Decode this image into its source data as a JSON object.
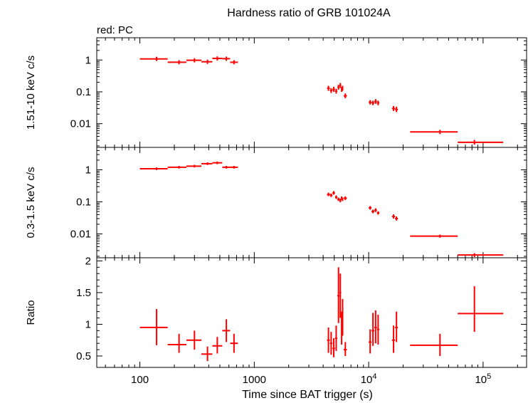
{
  "title": "Hardness ratio of GRB 101024A",
  "legend": "red: PC",
  "chart_data": [
    {
      "type": "scatter",
      "panel": "hard",
      "ylabel": "1.51-10 keV c/s",
      "xscale": "log",
      "yscale": "log",
      "xlim": [
        42,
        240000
      ],
      "ylim": [
        0.0018,
        5
      ],
      "yticks": [
        1,
        0.1,
        0.01
      ],
      "ytick_labels": [
        "1",
        "0.1",
        "0.01"
      ],
      "series": [
        {
          "color": "#ff0000",
          "points": [
            {
              "x": 140,
              "xlo": 100,
              "xhi": 175,
              "y": 1.08,
              "ylo": 0.93,
              "yhi": 1.26
            },
            {
              "x": 220,
              "xlo": 175,
              "xhi": 255,
              "y": 0.85,
              "ylo": 0.73,
              "yhi": 0.99
            },
            {
              "x": 300,
              "xlo": 255,
              "xhi": 345,
              "y": 0.98,
              "ylo": 0.84,
              "yhi": 1.14
            },
            {
              "x": 390,
              "xlo": 345,
              "xhi": 430,
              "y": 0.88,
              "ylo": 0.75,
              "yhi": 1.03
            },
            {
              "x": 475,
              "xlo": 430,
              "xhi": 525,
              "y": 1.12,
              "ylo": 0.96,
              "yhi": 1.3
            },
            {
              "x": 570,
              "xlo": 525,
              "xhi": 615,
              "y": 1.1,
              "ylo": 0.94,
              "yhi": 1.28
            },
            {
              "x": 665,
              "xlo": 615,
              "xhi": 720,
              "y": 0.85,
              "ylo": 0.73,
              "yhi": 0.99
            },
            {
              "x": 4450,
              "xlo": 4320,
              "xhi": 4580,
              "y": 0.13,
              "ylo": 0.108,
              "yhi": 0.155
            },
            {
              "x": 4700,
              "xlo": 4580,
              "xhi": 4820,
              "y": 0.11,
              "ylo": 0.092,
              "yhi": 0.131
            },
            {
              "x": 4950,
              "xlo": 4820,
              "xhi": 5080,
              "y": 0.12,
              "ylo": 0.1,
              "yhi": 0.143
            },
            {
              "x": 5200,
              "xlo": 5080,
              "xhi": 5320,
              "y": 0.105,
              "ylo": 0.088,
              "yhi": 0.125
            },
            {
              "x": 5450,
              "xlo": 5320,
              "xhi": 5560,
              "y": 0.14,
              "ylo": 0.117,
              "yhi": 0.167
            },
            {
              "x": 5650,
              "xlo": 5560,
              "xhi": 5750,
              "y": 0.16,
              "ylo": 0.134,
              "yhi": 0.19
            },
            {
              "x": 5800,
              "xlo": 5750,
              "xhi": 5860,
              "y": 0.12,
              "ylo": 0.1,
              "yhi": 0.143
            },
            {
              "x": 5920,
              "xlo": 5860,
              "xhi": 5980,
              "y": 0.13,
              "ylo": 0.108,
              "yhi": 0.155
            },
            {
              "x": 6250,
              "xlo": 6050,
              "xhi": 6450,
              "y": 0.075,
              "ylo": 0.063,
              "yhi": 0.089
            },
            {
              "x": 10300,
              "xlo": 10000,
              "xhi": 10600,
              "y": 0.047,
              "ylo": 0.04,
              "yhi": 0.055
            },
            {
              "x": 10900,
              "xlo": 10600,
              "xhi": 11200,
              "y": 0.045,
              "ylo": 0.038,
              "yhi": 0.053
            },
            {
              "x": 11500,
              "xlo": 11200,
              "xhi": 11800,
              "y": 0.05,
              "ylo": 0.042,
              "yhi": 0.059
            },
            {
              "x": 12100,
              "xlo": 11800,
              "xhi": 12400,
              "y": 0.045,
              "ylo": 0.038,
              "yhi": 0.053
            },
            {
              "x": 16500,
              "xlo": 16000,
              "xhi": 17000,
              "y": 0.03,
              "ylo": 0.025,
              "yhi": 0.036
            },
            {
              "x": 17500,
              "xlo": 17000,
              "xhi": 18000,
              "y": 0.028,
              "ylo": 0.023,
              "yhi": 0.034
            },
            {
              "x": 42000,
              "xlo": 23000,
              "xhi": 60000,
              "y": 0.0055,
              "ylo": 0.0047,
              "yhi": 0.0064
            },
            {
              "x": 84000,
              "xlo": 60000,
              "xhi": 150000,
              "y": 0.0026,
              "ylo": 0.0022,
              "yhi": 0.0031
            }
          ]
        }
      ]
    },
    {
      "type": "scatter",
      "panel": "soft",
      "ylabel": "0.3-1.5 keV c/s",
      "xscale": "log",
      "yscale": "log",
      "xlim": [
        42,
        240000
      ],
      "ylim": [
        0.0018,
        5
      ],
      "yticks": [
        1,
        0.1,
        0.01
      ],
      "ytick_labels": [
        "1",
        "0.1",
        "0.01"
      ],
      "series": [
        {
          "color": "#ff0000",
          "points": [
            {
              "x": 140,
              "xlo": 100,
              "xhi": 175,
              "y": 1.08,
              "ylo": 0.98,
              "yhi": 1.19
            },
            {
              "x": 220,
              "xlo": 175,
              "xhi": 255,
              "y": 1.2,
              "ylo": 1.09,
              "yhi": 1.32
            },
            {
              "x": 300,
              "xlo": 255,
              "xhi": 345,
              "y": 1.3,
              "ylo": 1.18,
              "yhi": 1.43
            },
            {
              "x": 390,
              "xlo": 345,
              "xhi": 430,
              "y": 1.55,
              "ylo": 1.41,
              "yhi": 1.7
            },
            {
              "x": 475,
              "xlo": 430,
              "xhi": 525,
              "y": 1.65,
              "ylo": 1.5,
              "yhi": 1.81
            },
            {
              "x": 570,
              "xlo": 525,
              "xhi": 615,
              "y": 1.2,
              "ylo": 1.09,
              "yhi": 1.32
            },
            {
              "x": 665,
              "xlo": 615,
              "xhi": 720,
              "y": 1.2,
              "ylo": 1.09,
              "yhi": 1.32
            },
            {
              "x": 4450,
              "xlo": 4320,
              "xhi": 4580,
              "y": 0.17,
              "ylo": 0.15,
              "yhi": 0.193
            },
            {
              "x": 4700,
              "xlo": 4580,
              "xhi": 4820,
              "y": 0.16,
              "ylo": 0.141,
              "yhi": 0.182
            },
            {
              "x": 4950,
              "xlo": 4820,
              "xhi": 5080,
              "y": 0.19,
              "ylo": 0.167,
              "yhi": 0.216
            },
            {
              "x": 5200,
              "xlo": 5080,
              "xhi": 5320,
              "y": 0.14,
              "ylo": 0.123,
              "yhi": 0.159
            },
            {
              "x": 5450,
              "xlo": 5320,
              "xhi": 5560,
              "y": 0.12,
              "ylo": 0.106,
              "yhi": 0.136
            },
            {
              "x": 5650,
              "xlo": 5560,
              "xhi": 5750,
              "y": 0.11,
              "ylo": 0.097,
              "yhi": 0.125
            },
            {
              "x": 5800,
              "xlo": 5750,
              "xhi": 5860,
              "y": 0.13,
              "ylo": 0.114,
              "yhi": 0.148
            },
            {
              "x": 5920,
              "xlo": 5860,
              "xhi": 5980,
              "y": 0.12,
              "ylo": 0.106,
              "yhi": 0.136
            },
            {
              "x": 6250,
              "xlo": 6050,
              "xhi": 6450,
              "y": 0.13,
              "ylo": 0.114,
              "yhi": 0.148
            },
            {
              "x": 10300,
              "xlo": 10000,
              "xhi": 10600,
              "y": 0.065,
              "ylo": 0.057,
              "yhi": 0.074
            },
            {
              "x": 10900,
              "xlo": 10600,
              "xhi": 11200,
              "y": 0.05,
              "ylo": 0.044,
              "yhi": 0.057
            },
            {
              "x": 11500,
              "xlo": 11200,
              "xhi": 11800,
              "y": 0.055,
              "ylo": 0.048,
              "yhi": 0.063
            },
            {
              "x": 12100,
              "xlo": 11800,
              "xhi": 12400,
              "y": 0.045,
              "ylo": 0.04,
              "yhi": 0.051
            },
            {
              "x": 16500,
              "xlo": 16000,
              "xhi": 17000,
              "y": 0.035,
              "ylo": 0.03,
              "yhi": 0.041
            },
            {
              "x": 17500,
              "xlo": 17000,
              "xhi": 18000,
              "y": 0.03,
              "ylo": 0.026,
              "yhi": 0.035
            },
            {
              "x": 42000,
              "xlo": 23000,
              "xhi": 60000,
              "y": 0.0085,
              "ylo": 0.0076,
              "yhi": 0.0095
            },
            {
              "x": 84000,
              "xlo": 60000,
              "xhi": 150000,
              "y": 0.0022,
              "ylo": 0.0019,
              "yhi": 0.0025
            }
          ]
        }
      ]
    },
    {
      "type": "scatter",
      "panel": "ratio",
      "xlabel": "Time since BAT trigger (s)",
      "ylabel": "Ratio",
      "xscale": "log",
      "yscale": "linear",
      "xlim": [
        42,
        240000
      ],
      "ylim": [
        0.32,
        2.05
      ],
      "yticks": [
        0.5,
        1,
        1.5,
        2
      ],
      "ytick_labels": [
        "0.5",
        "1",
        "1.5",
        "2"
      ],
      "xticks": [
        100,
        1000,
        10000,
        100000
      ],
      "xtick_labels": [
        {
          "base": "100",
          "exp": ""
        },
        {
          "base": "1000",
          "exp": ""
        },
        {
          "base": "10",
          "exp": "4"
        },
        {
          "base": "10",
          "exp": "5"
        }
      ],
      "series": [
        {
          "color": "#ff0000",
          "points": [
            {
              "x": 140,
              "xlo": 100,
              "xhi": 175,
              "y": 0.95,
              "ylo": 0.67,
              "yhi": 1.24
            },
            {
              "x": 220,
              "xlo": 175,
              "xhi": 255,
              "y": 0.68,
              "ylo": 0.55,
              "yhi": 0.85
            },
            {
              "x": 300,
              "xlo": 255,
              "xhi": 345,
              "y": 0.75,
              "ylo": 0.6,
              "yhi": 0.9
            },
            {
              "x": 390,
              "xlo": 345,
              "xhi": 430,
              "y": 0.53,
              "ylo": 0.42,
              "yhi": 0.65
            },
            {
              "x": 475,
              "xlo": 430,
              "xhi": 525,
              "y": 0.66,
              "ylo": 0.54,
              "yhi": 0.8
            },
            {
              "x": 570,
              "xlo": 525,
              "xhi": 615,
              "y": 0.9,
              "ylo": 0.72,
              "yhi": 1.08
            },
            {
              "x": 665,
              "xlo": 615,
              "xhi": 720,
              "y": 0.7,
              "ylo": 0.55,
              "yhi": 0.85
            },
            {
              "x": 4450,
              "xlo": 4320,
              "xhi": 4580,
              "y": 0.75,
              "ylo": 0.55,
              "yhi": 0.95
            },
            {
              "x": 4700,
              "xlo": 4580,
              "xhi": 4820,
              "y": 0.7,
              "ylo": 0.52,
              "yhi": 0.88
            },
            {
              "x": 4950,
              "xlo": 4820,
              "xhi": 5080,
              "y": 0.62,
              "ylo": 0.48,
              "yhi": 0.78
            },
            {
              "x": 5200,
              "xlo": 5080,
              "xhi": 5320,
              "y": 0.78,
              "ylo": 0.58,
              "yhi": 0.98
            },
            {
              "x": 5450,
              "xlo": 5320,
              "xhi": 5560,
              "y": 1.45,
              "ylo": 1.02,
              "yhi": 1.9
            },
            {
              "x": 5650,
              "xlo": 5560,
              "xhi": 5750,
              "y": 1.5,
              "ylo": 1.1,
              "yhi": 1.8
            },
            {
              "x": 5800,
              "xlo": 5750,
              "xhi": 5860,
              "y": 0.92,
              "ylo": 0.68,
              "yhi": 1.2
            },
            {
              "x": 5920,
              "xlo": 5860,
              "xhi": 5980,
              "y": 1.1,
              "ylo": 0.82,
              "yhi": 1.4
            },
            {
              "x": 6250,
              "xlo": 6050,
              "xhi": 6450,
              "y": 0.6,
              "ylo": 0.5,
              "yhi": 0.72
            },
            {
              "x": 10300,
              "xlo": 10000,
              "xhi": 10600,
              "y": 0.72,
              "ylo": 0.54,
              "yhi": 0.92
            },
            {
              "x": 10900,
              "xlo": 10600,
              "xhi": 11200,
              "y": 0.9,
              "ylo": 0.66,
              "yhi": 1.18
            },
            {
              "x": 11500,
              "xlo": 11200,
              "xhi": 11800,
              "y": 0.95,
              "ylo": 0.7,
              "yhi": 1.22
            },
            {
              "x": 12100,
              "xlo": 11800,
              "xhi": 12400,
              "y": 0.92,
              "ylo": 0.68,
              "yhi": 1.15
            },
            {
              "x": 16500,
              "xlo": 16000,
              "xhi": 17000,
              "y": 0.75,
              "ylo": 0.55,
              "yhi": 0.98
            },
            {
              "x": 17500,
              "xlo": 17000,
              "xhi": 18000,
              "y": 0.95,
              "ylo": 0.72,
              "yhi": 1.2
            },
            {
              "x": 42000,
              "xlo": 23000,
              "xhi": 60000,
              "y": 0.67,
              "ylo": 0.5,
              "yhi": 0.85
            },
            {
              "x": 84000,
              "xlo": 60000,
              "xhi": 150000,
              "y": 1.17,
              "ylo": 0.88,
              "yhi": 1.6
            }
          ]
        }
      ]
    }
  ]
}
